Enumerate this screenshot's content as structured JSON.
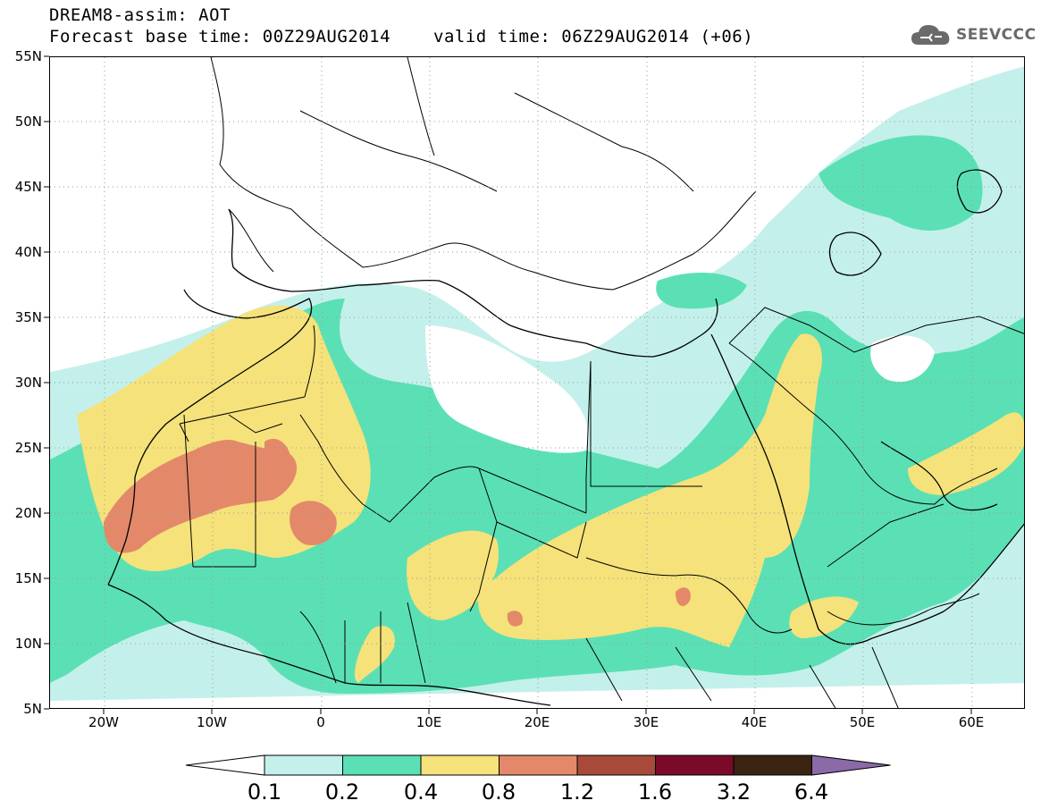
{
  "header": {
    "title": "DREAM8-assim: AOT",
    "base_time": "Forecast base time: 00Z29AUG2014",
    "valid_time": "valid time: 06Z29AUG2014 (+06)"
  },
  "logo": {
    "text": "SEEVCCC",
    "icon": "cloud-icon",
    "color": "#6a6a6a"
  },
  "map": {
    "lat_labels": [
      "55N",
      "50N",
      "45N",
      "40N",
      "35N",
      "30N",
      "25N",
      "20N",
      "15N",
      "10N",
      "5N"
    ],
    "lon_labels": [
      "20W",
      "10W",
      "0",
      "10E",
      "20E",
      "30E",
      "40E",
      "50E",
      "60E"
    ]
  },
  "colorbar": {
    "labels": [
      "0.1",
      "0.2",
      "0.4",
      "0.8",
      "1.2",
      "1.6",
      "3.2",
      "6.4"
    ],
    "colors": [
      "#ffffff",
      "#c4f0eb",
      "#5be0b5",
      "#f5e27a",
      "#e3896a",
      "#a84a3a",
      "#7a0a2a",
      "#3a2310",
      "#8b6aa8"
    ]
  }
}
